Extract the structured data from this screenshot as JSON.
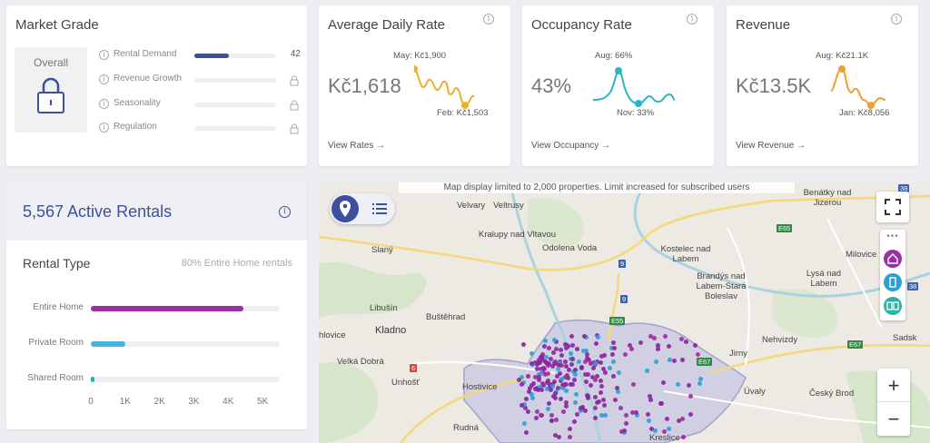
{
  "market_grade": {
    "title": "Market Grade",
    "overall_label": "Overall",
    "rows": [
      {
        "label": "Rental Demand",
        "value": "42",
        "level": 0.42,
        "locked": false
      },
      {
        "label": "Revenue Growth",
        "locked": true
      },
      {
        "label": "Seasonality",
        "locked": true
      },
      {
        "label": "Regulation",
        "locked": true
      }
    ]
  },
  "adr": {
    "title": "Average Daily Rate",
    "value": "Kč1,618",
    "peak_label": "May: Kč1,900",
    "low_label": "Feb: Kč1,503",
    "link": "View Rates →",
    "color": "#e8b32a"
  },
  "occupancy": {
    "title": "Occupancy Rate",
    "value": "43%",
    "peak_label": "Aug: 66%",
    "low_label": "Nov: 33%",
    "link": "View Occupancy →",
    "color": "#2ab5c5"
  },
  "revenue": {
    "title": "Revenue",
    "value": "Kč13.5K",
    "peak_label": "Aug: Kč21.1K",
    "low_label": "Jan: Kč8,056",
    "link": "View Revenue →",
    "color": "#f0a030"
  },
  "rentals": {
    "title": "5,567 Active Rentals",
    "type_title": "Rental Type",
    "type_subtitle": "80% Entire Home rentals",
    "bars": [
      {
        "label": "Entire Home",
        "value": 4450,
        "color": "#9a2fa8"
      },
      {
        "label": "Private Room",
        "value": 1000,
        "color": "#4ab3e6"
      },
      {
        "label": "Shared Room",
        "value": 117,
        "color": "#2bb3a3"
      }
    ],
    "axis_ticks": [
      "0",
      "1K",
      "2K",
      "3K",
      "4K",
      "5K"
    ],
    "axis_max": 5500
  },
  "map": {
    "banner": "Map display limited to 2,000 properties. Limit increased for subscribed users",
    "places": [
      {
        "name": "Velvary"
      },
      {
        "name": "Veltrusy"
      },
      {
        "name": "Kralupy nad Vltavou"
      },
      {
        "name": "Odolena Voda"
      },
      {
        "name": "Kostelec nad Labem"
      },
      {
        "name": "Milovice"
      },
      {
        "name": "Benátky nad Jizerou"
      },
      {
        "name": "Slaný"
      },
      {
        "name": "Brandýs nad Labem-Stará Boleslav"
      },
      {
        "name": "Lysá nad Labem"
      },
      {
        "name": "Libušín"
      },
      {
        "name": "Buštěhrad"
      },
      {
        "name": "Kladno"
      },
      {
        "name": "hlovice"
      },
      {
        "name": "Velká Dobrá"
      },
      {
        "name": "Nehvizdy"
      },
      {
        "name": "Jirny"
      },
      {
        "name": "Unhošť"
      },
      {
        "name": "Hostivice"
      },
      {
        "name": "Úvaly"
      },
      {
        "name": "Český Brod"
      },
      {
        "name": "Rudná"
      },
      {
        "name": "Kreslice"
      },
      {
        "name": "Sadsk"
      }
    ],
    "road_labels": [
      "E65",
      "E55",
      "E67",
      "E67",
      "38",
      "38",
      "9",
      "9",
      "6"
    ],
    "zoom_in": "+",
    "zoom_out": "−"
  }
}
